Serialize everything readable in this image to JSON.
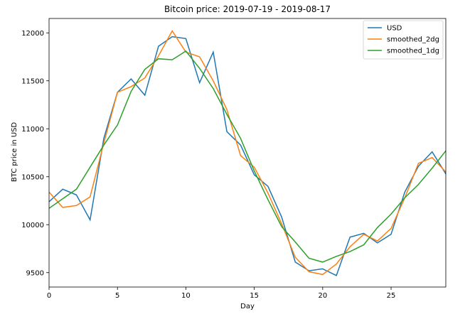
{
  "chart_data": {
    "type": "line",
    "title": "Bitcoin price: 2019-07-19 - 2019-08-17",
    "xlabel": "Day",
    "ylabel": "BTC price in USD",
    "xlim": [
      0,
      29
    ],
    "ylim": [
      9350,
      12150
    ],
    "xticks": [
      0,
      5,
      10,
      15,
      20,
      25
    ],
    "yticks": [
      9500,
      10000,
      10500,
      11000,
      11500,
      12000
    ],
    "grid": false,
    "legend": "top-right",
    "x": [
      0,
      1,
      2,
      3,
      4,
      5,
      6,
      7,
      8,
      9,
      10,
      11,
      12,
      13,
      14,
      15,
      16,
      17,
      18,
      19,
      20,
      21,
      22,
      23,
      24,
      25,
      26,
      27,
      28,
      29
    ],
    "series": [
      {
        "name": "USD",
        "color": "#1f77b4",
        "values": [
          10240,
          10370,
          10310,
          10050,
          10900,
          11380,
          11520,
          11350,
          11860,
          11960,
          11940,
          11480,
          11800,
          10970,
          10830,
          10520,
          10400,
          10080,
          9610,
          9520,
          9540,
          9470,
          9870,
          9910,
          9810,
          9900,
          10340,
          10610,
          10760,
          10530
        ]
      },
      {
        "name": "smoothed_2dg",
        "color": "#ff7f0e",
        "values": [
          10340,
          10180,
          10200,
          10290,
          10850,
          11380,
          11440,
          11530,
          11760,
          12020,
          11800,
          11750,
          11500,
          11200,
          10720,
          10600,
          10330,
          10010,
          9660,
          9510,
          9480,
          9590,
          9770,
          9900,
          9830,
          9960,
          10280,
          10640,
          10700,
          10550
        ]
      },
      {
        "name": "smoothed_1dg",
        "color": "#2ca02c",
        "values": [
          10170,
          10270,
          10370,
          10600,
          10830,
          11040,
          11390,
          11620,
          11730,
          11720,
          11810,
          11630,
          11420,
          11150,
          10900,
          10560,
          10260,
          9980,
          9820,
          9650,
          9610,
          9670,
          9720,
          9790,
          9970,
          10110,
          10280,
          10420,
          10590,
          10770
        ]
      }
    ]
  }
}
